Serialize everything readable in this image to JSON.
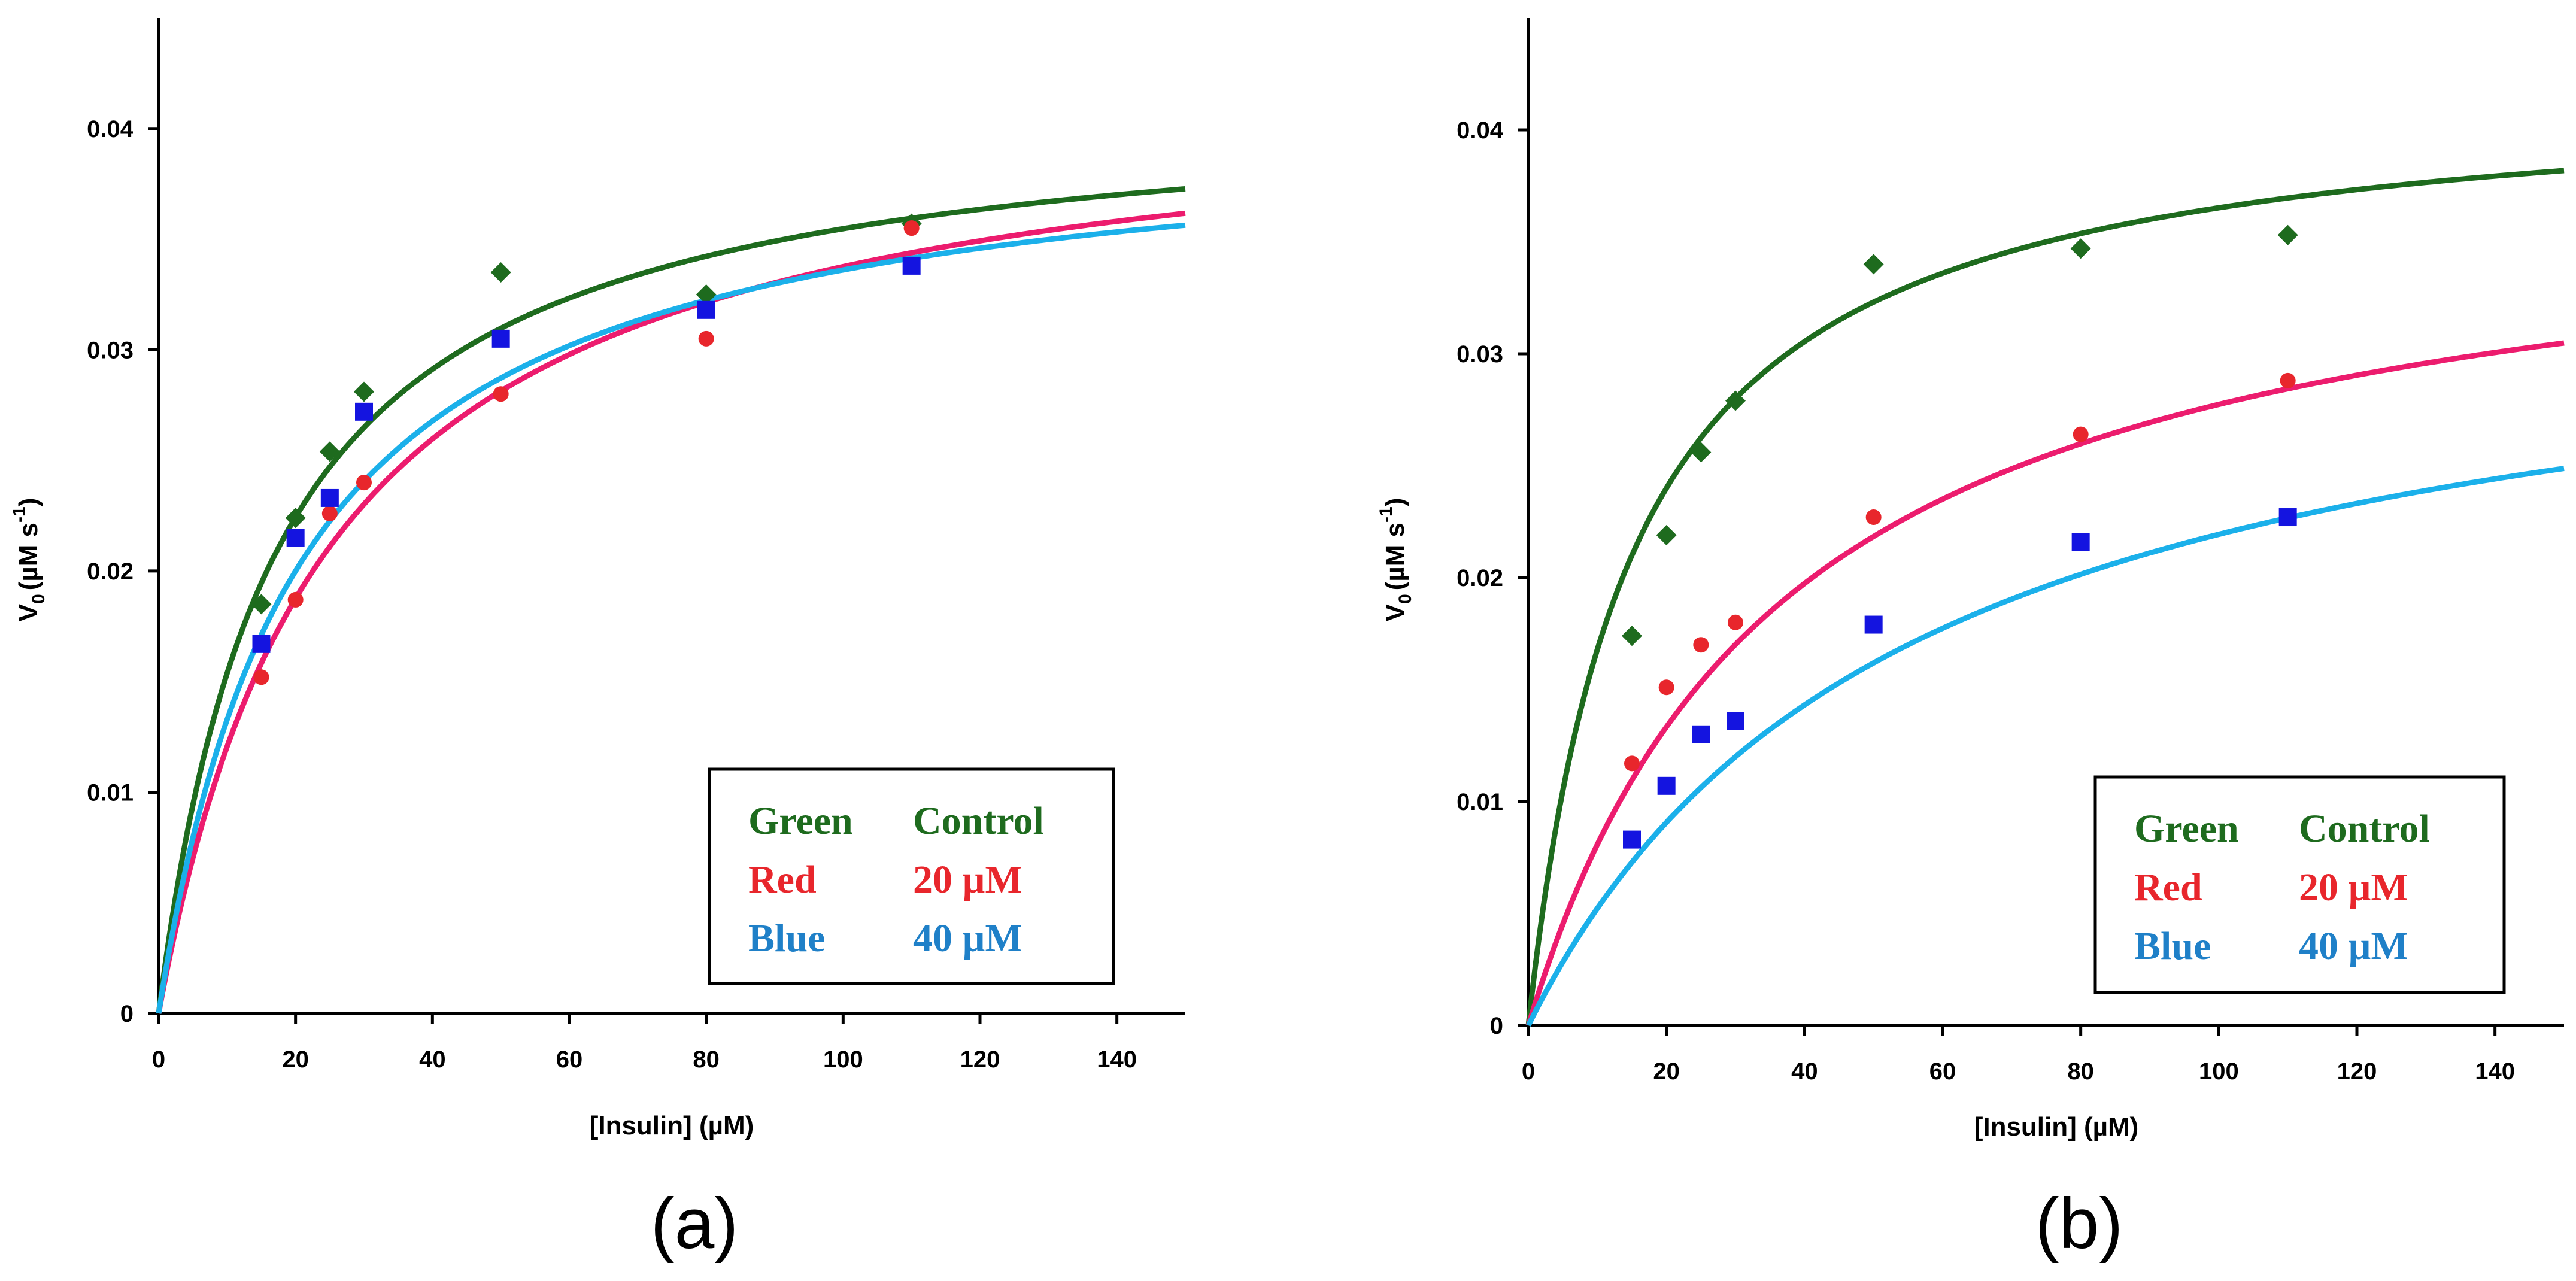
{
  "colors": {
    "green": "#1e6b1e",
    "red": "#ec1c6e",
    "red_marker": "#e8262c",
    "blue": "#1bb0ea",
    "blue_marker": "#1414e0",
    "legend_green": "#1e6b1e",
    "legend_red": "#e8262c",
    "legend_blue": "#1f80c8"
  },
  "chart_data": [
    {
      "type": "scatter",
      "panel_label": "(a)",
      "xlabel": "[Insulin] (µM)",
      "ylabel": "V0 (µM s-1)",
      "ylabel_parts": {
        "v": "V",
        "v_sub": "0",
        "unit": "(µM s",
        "exp": "-1",
        "close": ")"
      },
      "xlim": [
        0,
        150
      ],
      "ylim": [
        0,
        0.045
      ],
      "xticks": [
        0,
        20,
        40,
        60,
        80,
        100,
        120,
        140
      ],
      "xtick_labels": [
        "0",
        "20",
        "40",
        "60",
        "80",
        "100",
        "120",
        "140"
      ],
      "yticks": [
        0,
        0.01,
        0.02,
        0.03,
        0.04
      ],
      "ytick_labels": [
        "0",
        "0.01",
        "0.02",
        "0.03",
        "0.04"
      ],
      "legend": {
        "position": "bottom-right",
        "rows": [
          {
            "color_name": "Green",
            "condition": "Control"
          },
          {
            "color_name": "Red",
            "condition": "20 µM"
          },
          {
            "color_name": "Blue",
            "condition": "40 µM"
          }
        ]
      },
      "series": [
        {
          "name": "Control",
          "marker": "diamond",
          "color_key": "green",
          "marker_color_key": "green",
          "vmax": 0.0415,
          "km": 17,
          "x": [
            15,
            20,
            25,
            30,
            50,
            80,
            110
          ],
          "y": [
            0.0185,
            0.0224,
            0.0254,
            0.0281,
            0.0335,
            0.0325,
            0.0357
          ]
        },
        {
          "name": "20 µM",
          "marker": "circle",
          "color_key": "red",
          "marker_color_key": "red_marker",
          "vmax": 0.0422,
          "km": 25,
          "x": [
            15,
            20,
            25,
            30,
            50,
            80,
            110
          ],
          "y": [
            0.0152,
            0.0187,
            0.0226,
            0.024,
            0.028,
            0.0305,
            0.0355
          ]
        },
        {
          "name": "40 µM",
          "marker": "square",
          "color_key": "blue",
          "marker_color_key": "blue_marker",
          "vmax": 0.0405,
          "km": 20.5,
          "x": [
            15,
            20,
            25,
            30,
            50,
            80,
            110
          ],
          "y": [
            0.0167,
            0.0215,
            0.0233,
            0.0272,
            0.0305,
            0.0318,
            0.0338
          ]
        }
      ]
    },
    {
      "type": "scatter",
      "panel_label": "(b)",
      "xlabel": "[Insulin] (µM)",
      "ylabel": "V0 (µM s-1)",
      "ylabel_parts": {
        "v": "V",
        "v_sub": "0",
        "unit": "(µM s",
        "exp": "-1",
        "close": ")"
      },
      "xlim": [
        0,
        150
      ],
      "ylim": [
        0,
        0.045
      ],
      "xticks": [
        0,
        20,
        40,
        60,
        80,
        100,
        120,
        140
      ],
      "xtick_labels": [
        "0",
        "20",
        "40",
        "60",
        "80",
        "100",
        "120",
        "140"
      ],
      "yticks": [
        0,
        0.01,
        0.02,
        0.03,
        0.04
      ],
      "ytick_labels": [
        "0",
        "0.01",
        "0.02",
        "0.03",
        "0.04"
      ],
      "legend": {
        "position": "bottom-right",
        "rows": [
          {
            "color_name": "Green",
            "condition": "Control"
          },
          {
            "color_name": "Red",
            "condition": "20 µM"
          },
          {
            "color_name": "Blue",
            "condition": "40 µM"
          }
        ]
      },
      "series": [
        {
          "name": "Control",
          "marker": "diamond",
          "color_key": "green",
          "marker_color_key": "green",
          "vmax": 0.042,
          "km": 15,
          "x": [
            15,
            20,
            25,
            30,
            50,
            80,
            110
          ],
          "y": [
            0.0174,
            0.0219,
            0.0256,
            0.0279,
            0.034,
            0.0347,
            0.0353
          ]
        },
        {
          "name": "20 µM",
          "marker": "circle",
          "color_key": "red",
          "marker_color_key": "red_marker",
          "vmax": 0.038,
          "km": 37,
          "x": [
            15,
            20,
            25,
            30,
            50,
            80,
            110
          ],
          "y": [
            0.0117,
            0.0151,
            0.017,
            0.018,
            0.0227,
            0.0264,
            0.0288
          ]
        },
        {
          "name": "40 µM",
          "marker": "square",
          "color_key": "blue",
          "marker_color_key": "blue_marker",
          "vmax": 0.034,
          "km": 55,
          "x": [
            15,
            20,
            25,
            30,
            50,
            80,
            110
          ],
          "y": [
            0.0083,
            0.0107,
            0.013,
            0.0136,
            0.0179,
            0.0216,
            0.0227
          ]
        }
      ]
    }
  ]
}
